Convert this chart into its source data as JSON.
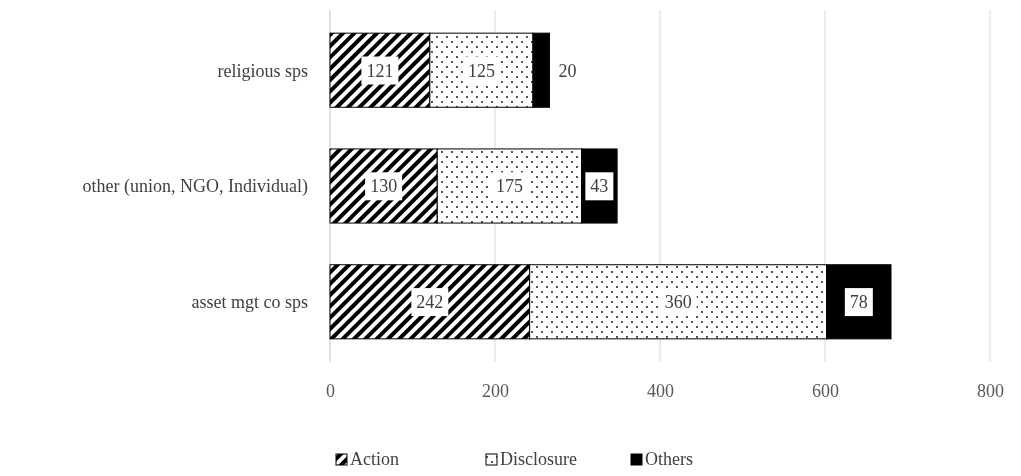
{
  "chart_data": {
    "type": "bar",
    "orientation": "horizontal",
    "stacked": true,
    "categories": [
      "religious sps",
      "other (union, NGO, Individual)",
      "asset mgt co sps"
    ],
    "series": [
      {
        "name": "Action",
        "color": "#000000",
        "values": [
          121,
          130,
          242
        ]
      },
      {
        "name": "Disclosure",
        "color": "#000000",
        "values": [
          125,
          175,
          360
        ]
      },
      {
        "name": "Others",
        "color": "#000000",
        "values": [
          20,
          43,
          78
        ]
      }
    ],
    "xlim": [
      0,
      800
    ],
    "xticks": [
      0,
      200,
      400,
      600,
      800
    ],
    "grid": "x",
    "legend": "bottom",
    "data_labels": true
  }
}
